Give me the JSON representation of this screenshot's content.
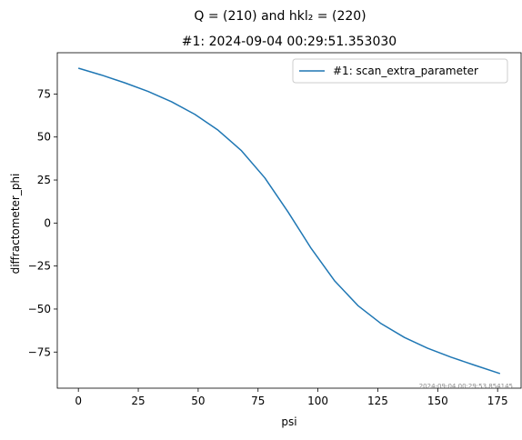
{
  "chart_data": {
    "type": "line",
    "suptitle": "Q = (210) and hkl₂ = (220)",
    "title": "#1: 2024-09-04 00:29:51.353030",
    "xlabel": "psi",
    "ylabel": "diffractometer_phi",
    "xlim": [
      -8.8,
      184.8
    ],
    "ylim": [
      -96,
      99
    ],
    "xticks": [
      0,
      25,
      50,
      75,
      100,
      125,
      150,
      175
    ],
    "yticks": [
      -75,
      -50,
      -25,
      0,
      25,
      50,
      75
    ],
    "xtick_labels": [
      "0",
      "25",
      "50",
      "75",
      "100",
      "125",
      "150",
      "175"
    ],
    "ytick_labels": [
      "−75",
      "−50",
      "−25",
      "0",
      "25",
      "50",
      "75"
    ],
    "legend_position": "upper right",
    "grid": false,
    "series": [
      {
        "name": "#1: scan_extra_parameter",
        "color": "#1f77b4",
        "x": [
          0,
          9.7,
          19.4,
          29.1,
          38.9,
          48.6,
          58.3,
          68.1,
          77.8,
          87.5,
          97.2,
          106.9,
          116.7,
          126.4,
          136.1,
          145.8,
          155.6,
          165.3,
          176
        ],
        "y": [
          90,
          86,
          81.5,
          76.5,
          70.5,
          63.2,
          54,
          42,
          26.3,
          6.5,
          -14.8,
          -33.5,
          -48,
          -58.5,
          -66.5,
          -72.8,
          -78,
          -82.6,
          -87.5
        ]
      }
    ],
    "watermark": "2024-09-04 00:29:53.854145"
  }
}
